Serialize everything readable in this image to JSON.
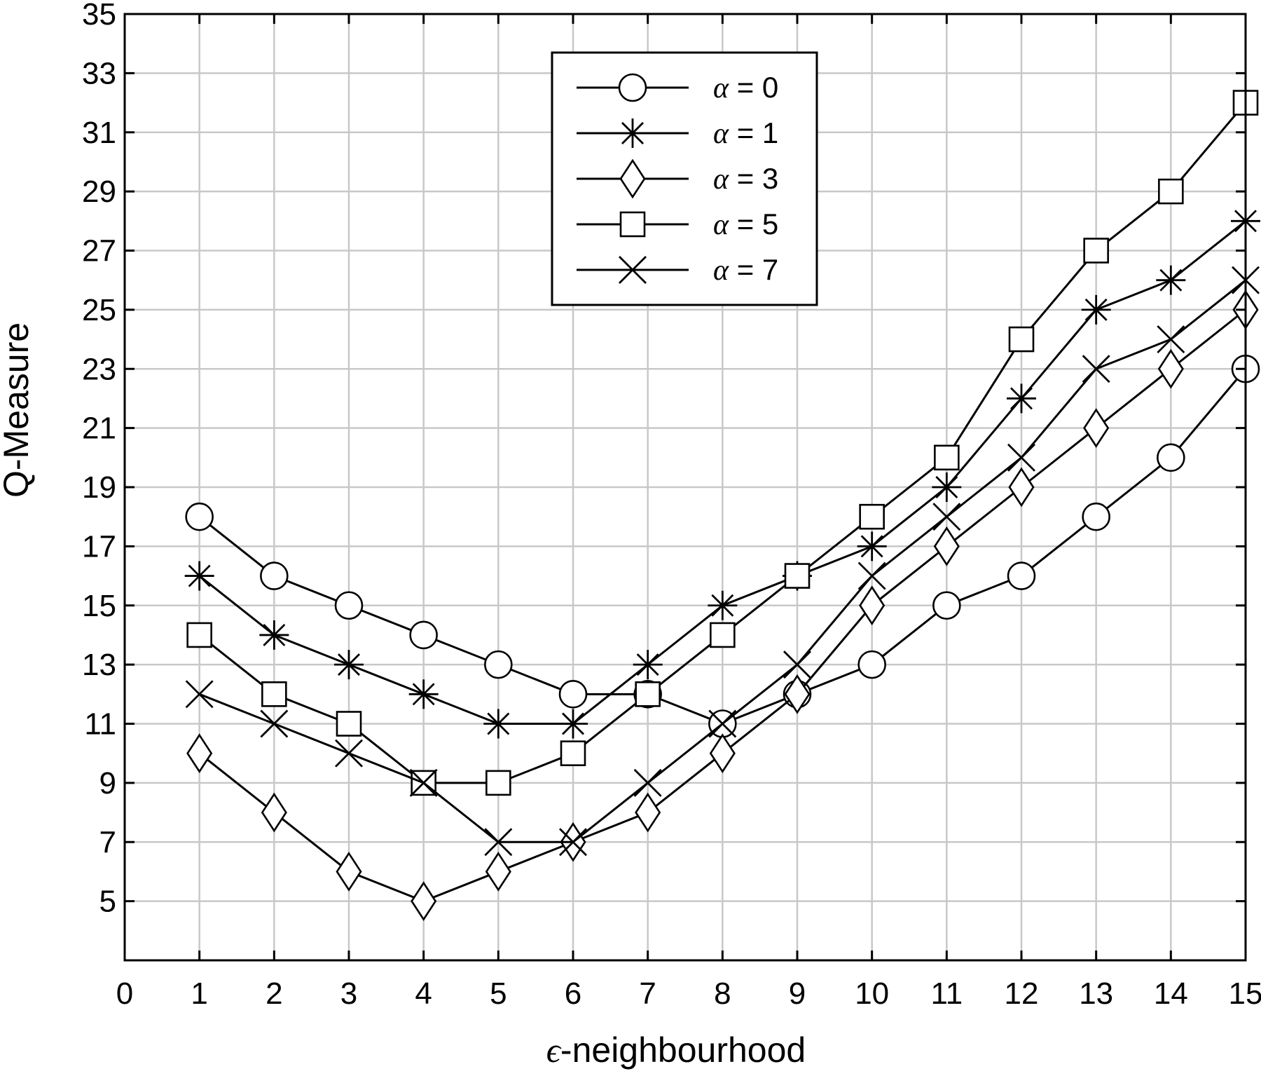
{
  "chart_data": {
    "type": "line",
    "title": "",
    "xlabel": {
      "symbol": "ϵ",
      "text": "-neighbourhood"
    },
    "ylabel": "Q-Measure",
    "xlim": [
      0,
      15
    ],
    "ylim": [
      3,
      35
    ],
    "xticks": [
      0,
      1,
      2,
      3,
      4,
      5,
      6,
      7,
      8,
      9,
      10,
      11,
      12,
      13,
      14,
      15
    ],
    "yticks": [
      5,
      7,
      9,
      11,
      13,
      15,
      17,
      19,
      21,
      23,
      25,
      27,
      29,
      31,
      33,
      35
    ],
    "grid": true,
    "legend_position": "top-center",
    "x": [
      1,
      2,
      3,
      4,
      5,
      6,
      7,
      8,
      9,
      10,
      11,
      12,
      13,
      14,
      15
    ],
    "series": [
      {
        "name": "α = 0",
        "symbol": "α",
        "label_suffix": " = 0",
        "marker": "circle",
        "values": [
          18,
          16,
          15,
          14,
          13,
          12,
          12,
          11,
          12,
          13,
          15,
          16,
          18,
          20,
          23
        ]
      },
      {
        "name": "α = 1",
        "symbol": "α",
        "label_suffix": " = 1",
        "marker": "asterisk",
        "values": [
          16,
          14,
          13,
          12,
          11,
          11,
          13,
          15,
          16,
          17,
          19,
          22,
          25,
          26,
          28
        ]
      },
      {
        "name": "α = 3",
        "symbol": "α",
        "label_suffix": " = 3",
        "marker": "diamond",
        "values": [
          10,
          8,
          6,
          5,
          6,
          7,
          8,
          10,
          12,
          15,
          17,
          19,
          21,
          23,
          25
        ]
      },
      {
        "name": "α = 5",
        "symbol": "α",
        "label_suffix": " = 5",
        "marker": "square",
        "values": [
          14,
          12,
          11,
          9,
          9,
          10,
          12,
          14,
          16,
          18,
          20,
          24,
          27,
          29,
          32
        ]
      },
      {
        "name": "α = 7",
        "symbol": "α",
        "label_suffix": " = 7",
        "marker": "x",
        "values": [
          12,
          11,
          10,
          9,
          7,
          7,
          9,
          11,
          13,
          16,
          18,
          20,
          23,
          24,
          26
        ]
      }
    ],
    "colors": {
      "line": "#000000",
      "grid": "#c8c8c8",
      "background": "#ffffff"
    }
  }
}
